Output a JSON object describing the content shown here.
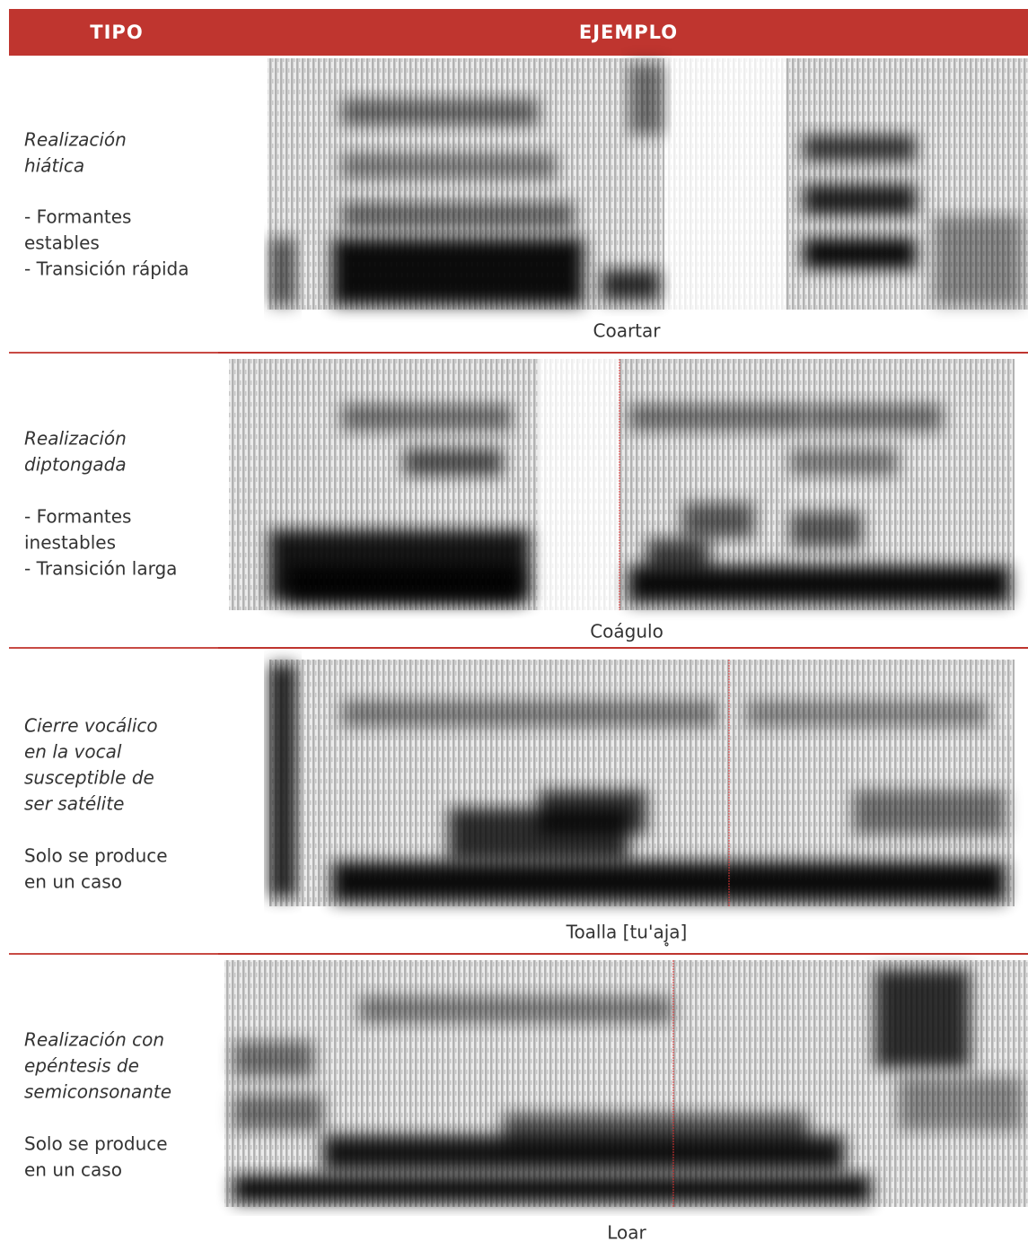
{
  "header": {
    "columns": [
      "TIPO",
      "EJEMPLO"
    ]
  },
  "rows": [
    {
      "type": [
        "Realización",
        "hiática"
      ],
      "notes": [
        "- Formantes",
        "estables",
        "- Transición rápida"
      ],
      "caption": "Coartar"
    },
    {
      "type": [
        "Realización",
        "diptongada"
      ],
      "notes": [
        "- Formantes",
        "inestables",
        "- Transición larga"
      ],
      "caption": "Coágulo"
    },
    {
      "type": [
        "Cierre vocálico",
        "en la vocal",
        "susceptible de",
        "ser satélite"
      ],
      "notes": [
        "Solo se produce",
        "en un caso"
      ],
      "caption": "Toalla [tu'aj̥a]"
    },
    {
      "type": [
        "Realización con",
        "epéntesis de",
        "semiconsonante"
      ],
      "notes": [
        "Solo se produce",
        "en un caso"
      ],
      "caption": "Loar"
    }
  ]
}
